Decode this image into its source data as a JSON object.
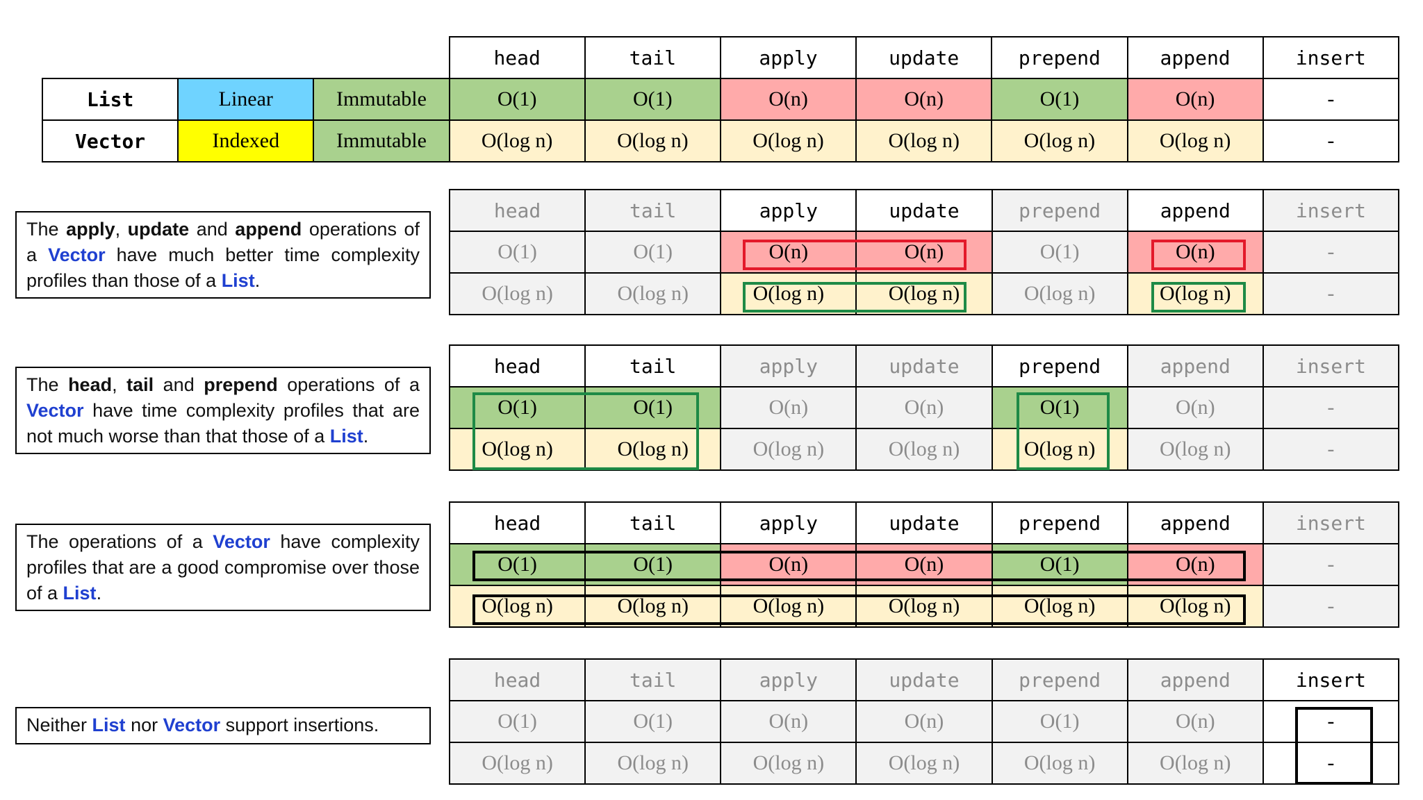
{
  "ops": [
    "head",
    "tail",
    "apply",
    "update",
    "prepend",
    "append",
    "insert"
  ],
  "main_table": {
    "rows": [
      {
        "name": "List",
        "kind": "Linear",
        "mutability": "Immutable",
        "values": [
          "O(1)",
          "O(1)",
          "O(n)",
          "O(n)",
          "O(1)",
          "O(n)",
          "-"
        ]
      },
      {
        "name": "Vector",
        "kind": "Indexed",
        "mutability": "Immutable",
        "values": [
          "O(log n)",
          "O(log n)",
          "O(log n)",
          "O(log n)",
          "O(log n)",
          "O(log n)",
          "-"
        ]
      }
    ]
  },
  "notes": [
    {
      "t1": "The ",
      "b1": "apply",
      "t2": ", ",
      "b2": "update",
      "t3": " and ",
      "b3": "append",
      "t4": " operations of a ",
      "k1": "Vector",
      "t5": " have much better time complexity profiles than those of a ",
      "k2": "List",
      "t6": "."
    },
    {
      "t1": "The ",
      "b1": "head",
      "t2": ", ",
      "b2": "tail",
      "t3": " and ",
      "b3": "prepend",
      "t4": " operations of a ",
      "k1": "Vector",
      "t5": " have time complexity profiles that are not much worse than that those of a ",
      "k2": "List",
      "t6": "."
    },
    {
      "t1": "The operations of a ",
      "k1": "Vector",
      "t2": " have complexity profiles that are a good compromise over those of a ",
      "k2": "List",
      "t3": "."
    },
    {
      "t1": "Neither ",
      "k1": "List",
      "t2": " nor ",
      "k2": "Vector",
      "t3": " support insertions."
    }
  ],
  "colors": {
    "fast": "#a9d18e",
    "slow": "#ffaaaa",
    "log": "#fff2cc",
    "linear": "#6fd3ff",
    "indexed": "#ffff00",
    "immutable": "#a9d18e",
    "dim": "#f2f2f2",
    "keyword": "#1f40d0"
  }
}
